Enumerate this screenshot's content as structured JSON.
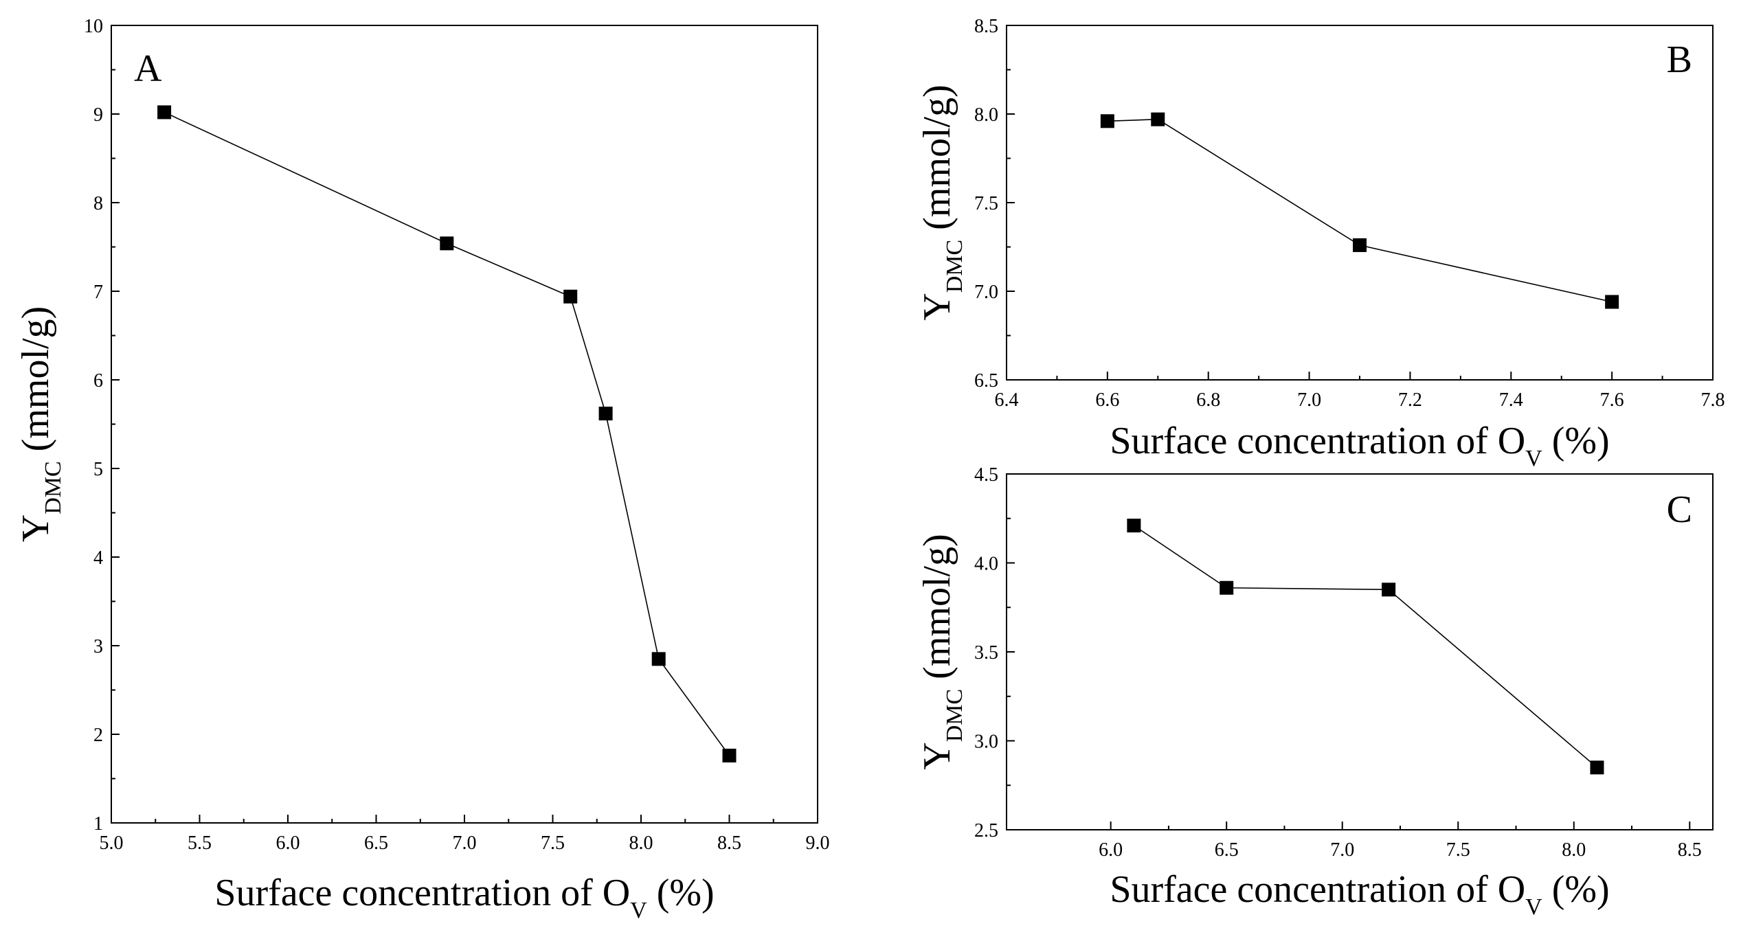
{
  "chart_data": [
    {
      "type": "line",
      "panel": "A",
      "panel_letter": "A",
      "x": [
        5.3,
        6.9,
        7.6,
        7.8,
        8.1,
        8.5
      ],
      "y": [
        9.02,
        7.54,
        6.94,
        5.62,
        2.85,
        1.76
      ],
      "xlim": [
        5.0,
        9.0
      ],
      "ylim": [
        1,
        10
      ],
      "xticks": [
        "5.0",
        "5.5",
        "6.0",
        "6.5",
        "7.0",
        "7.5",
        "8.0",
        "8.5",
        "9.0"
      ],
      "yticks": [
        "1",
        "2",
        "3",
        "4",
        "5",
        "6",
        "7",
        "8",
        "9",
        "10"
      ],
      "xlabel": {
        "main": "Surface concentration of  O",
        "sub": "V",
        "tail": " (%)"
      },
      "ylabel": {
        "main": "Y",
        "sub": "DMC",
        "tail": " (mmol/g)"
      },
      "marker": "square",
      "grid": false
    },
    {
      "type": "line",
      "panel": "B",
      "panel_letter": "B",
      "x": [
        6.6,
        6.7,
        7.1,
        7.6
      ],
      "y": [
        7.96,
        7.97,
        7.26,
        6.94
      ],
      "xlim": [
        6.4,
        7.8
      ],
      "ylim": [
        6.5,
        8.5
      ],
      "xticks": [
        "6.4",
        "6.6",
        "6.8",
        "7.0",
        "7.2",
        "7.4",
        "7.6",
        "7.8"
      ],
      "yticks": [
        "6.5",
        "7.0",
        "7.5",
        "8.0",
        "8.5"
      ],
      "xlabel": {
        "main": "Surface concentration of  O",
        "sub": "V",
        "tail": " (%)"
      },
      "ylabel": {
        "main": "Y",
        "sub": "DMC",
        "tail": " (mmol/g)"
      },
      "marker": "square",
      "grid": false
    },
    {
      "type": "line",
      "panel": "C",
      "panel_letter": "C",
      "x": [
        6.1,
        6.5,
        7.2,
        8.1
      ],
      "y": [
        4.21,
        3.86,
        3.85,
        2.85
      ],
      "xlim": [
        5.55,
        8.6
      ],
      "ylim": [
        2.5,
        4.5
      ],
      "xticks": [
        "6.0",
        "6.5",
        "7.0",
        "7.5",
        "8.0",
        "8.5"
      ],
      "yticks": [
        "2.5",
        "3.0",
        "3.5",
        "4.0",
        "4.5"
      ],
      "xlabel": {
        "main": "Surface concentration of  O",
        "sub": "V",
        "tail": " (%)"
      },
      "ylabel": {
        "main": "Y",
        "sub": "DMC",
        "tail": " (mmol/g)"
      },
      "marker": "square",
      "grid": false
    }
  ]
}
